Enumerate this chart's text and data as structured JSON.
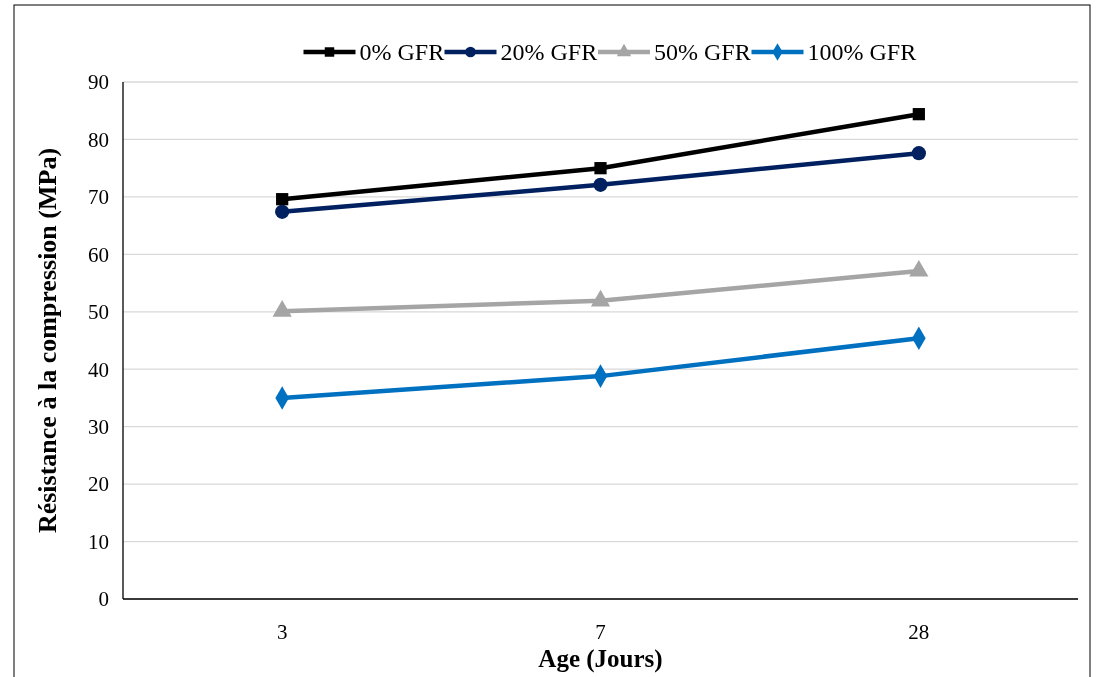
{
  "chart_data": {
    "type": "line",
    "xlabel": "Age (Jours)",
    "ylabel": "Résistance à la compression (MPa)",
    "categories": [
      "3",
      "7",
      "28"
    ],
    "series": [
      {
        "name": "0% GFR",
        "color": "#000000",
        "marker": "square",
        "values": [
          69.6,
          75.0,
          84.4
        ]
      },
      {
        "name": "20% GFR",
        "color": "#002060",
        "marker": "circle",
        "values": [
          67.4,
          72.1,
          77.6
        ]
      },
      {
        "name": "50% GFR",
        "color": "#a5a5a5",
        "marker": "triangle",
        "values": [
          50.1,
          51.9,
          57.1
        ]
      },
      {
        "name": "100% GFR",
        "color": "#0070c0",
        "marker": "diamond",
        "values": [
          35.0,
          38.8,
          45.4
        ]
      }
    ],
    "ylim": [
      0,
      90
    ],
    "yticks": [
      0,
      10,
      20,
      30,
      40,
      50,
      60,
      70,
      80,
      90
    ],
    "grid": "y",
    "legend": "top"
  }
}
